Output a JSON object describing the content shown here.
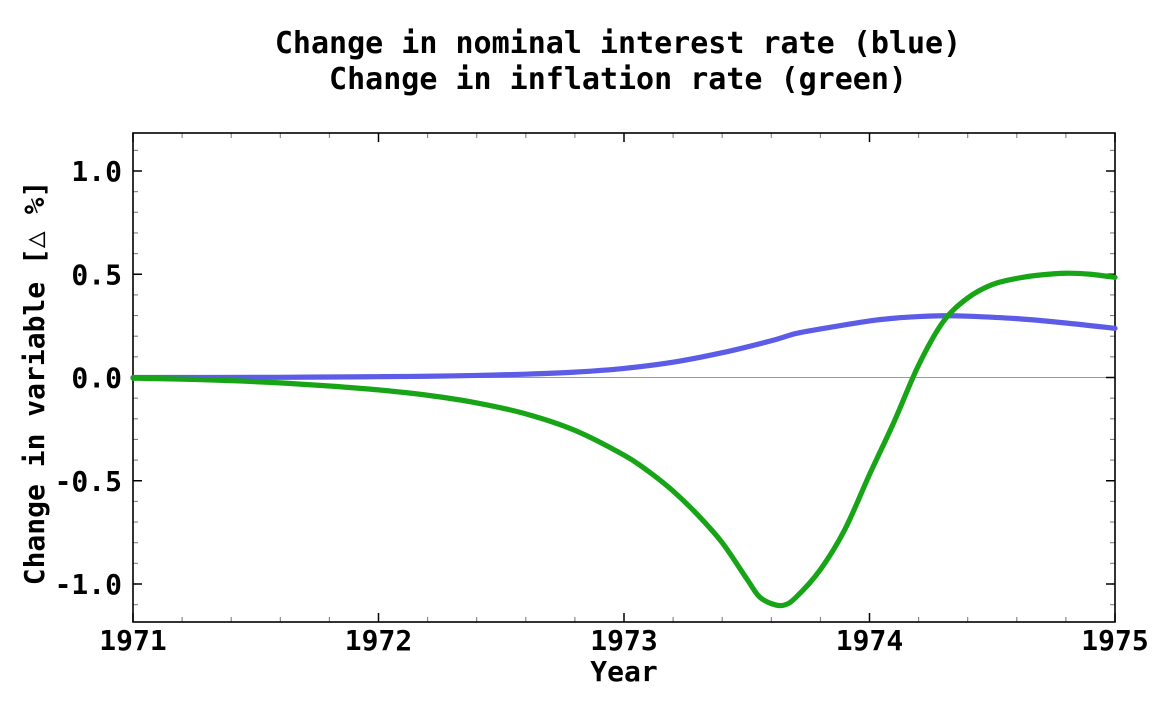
{
  "title": {
    "line1": "Change in nominal interest rate (blue)",
    "line2": "Change in inflation rate (green)"
  },
  "colors": {
    "nominal_interest_rate": "#5c5ce6",
    "inflation_rate": "#17a517",
    "zero_line": "#999999",
    "frame": "#000000",
    "major_tick": "#000000",
    "minor_tick": "#808080",
    "text": "#000000",
    "background": "#ffffff"
  },
  "chart_data": {
    "type": "line",
    "title": "Change in nominal interest rate (blue)\nChange in inflation rate (green)",
    "xlabel": "Year",
    "ylabel": "Change in variable [△ %]",
    "xlim": [
      1971,
      1975
    ],
    "ylim": [
      -1.184,
      1.184
    ],
    "grid": false,
    "legend": "none (series identified by color in title)",
    "zero_line": true,
    "x_major_ticks": [
      1971,
      1972,
      1973,
      1974,
      1975
    ],
    "x_tick_labels": [
      "1971",
      "1972",
      "1973",
      "1974",
      "1975"
    ],
    "x_minor_tick_step": 0.2,
    "y_major_ticks": [
      -1.0,
      -0.5,
      0.0,
      0.5,
      1.0
    ],
    "y_tick_labels": [
      "-1.0",
      "-0.5",
      "0.0",
      "0.5",
      "1.0"
    ],
    "y_minor_tick_step": 0.1,
    "series": [
      {
        "id": "nominal-interest-rate",
        "name": "Change in nominal interest rate",
        "color_key": "nominal_interest_rate",
        "color": "#5c5ce6",
        "points": [
          [
            1971.0,
            0.0
          ],
          [
            1971.3,
            0.0
          ],
          [
            1971.6,
            0.001
          ],
          [
            1971.9,
            0.003
          ],
          [
            1972.0,
            0.004
          ],
          [
            1972.2,
            0.006
          ],
          [
            1972.4,
            0.01
          ],
          [
            1972.6,
            0.016
          ],
          [
            1972.8,
            0.026
          ],
          [
            1973.0,
            0.044
          ],
          [
            1973.2,
            0.074
          ],
          [
            1973.4,
            0.12
          ],
          [
            1973.6,
            0.178
          ],
          [
            1973.7,
            0.213
          ],
          [
            1973.8,
            0.235
          ],
          [
            1974.0,
            0.274
          ],
          [
            1974.1,
            0.287
          ],
          [
            1974.2,
            0.295
          ],
          [
            1974.3,
            0.299
          ],
          [
            1974.4,
            0.297
          ],
          [
            1974.6,
            0.285
          ],
          [
            1974.8,
            0.264
          ],
          [
            1975.0,
            0.238
          ]
        ]
      },
      {
        "id": "inflation-rate",
        "name": "Change in inflation rate",
        "color_key": "inflation_rate",
        "color": "#17a517",
        "points": [
          [
            1971.0,
            -0.003
          ],
          [
            1971.2,
            -0.008
          ],
          [
            1971.4,
            -0.015
          ],
          [
            1971.6,
            -0.026
          ],
          [
            1971.8,
            -0.041
          ],
          [
            1972.0,
            -0.06
          ],
          [
            1972.2,
            -0.086
          ],
          [
            1972.4,
            -0.123
          ],
          [
            1972.6,
            -0.176
          ],
          [
            1972.8,
            -0.256
          ],
          [
            1973.0,
            -0.376
          ],
          [
            1973.1,
            -0.455
          ],
          [
            1973.2,
            -0.55
          ],
          [
            1973.3,
            -0.665
          ],
          [
            1973.4,
            -0.8
          ],
          [
            1973.5,
            -0.975
          ],
          [
            1973.55,
            -1.06
          ],
          [
            1973.6,
            -1.095
          ],
          [
            1973.65,
            -1.103
          ],
          [
            1973.7,
            -1.065
          ],
          [
            1973.8,
            -0.93
          ],
          [
            1973.9,
            -0.735
          ],
          [
            1974.0,
            -0.47
          ],
          [
            1974.1,
            -0.215
          ],
          [
            1974.2,
            0.06
          ],
          [
            1974.3,
            0.27
          ],
          [
            1974.4,
            0.385
          ],
          [
            1974.5,
            0.45
          ],
          [
            1974.6,
            0.48
          ],
          [
            1974.7,
            0.497
          ],
          [
            1974.8,
            0.505
          ],
          [
            1974.9,
            0.5
          ],
          [
            1975.0,
            0.485
          ]
        ]
      }
    ]
  }
}
